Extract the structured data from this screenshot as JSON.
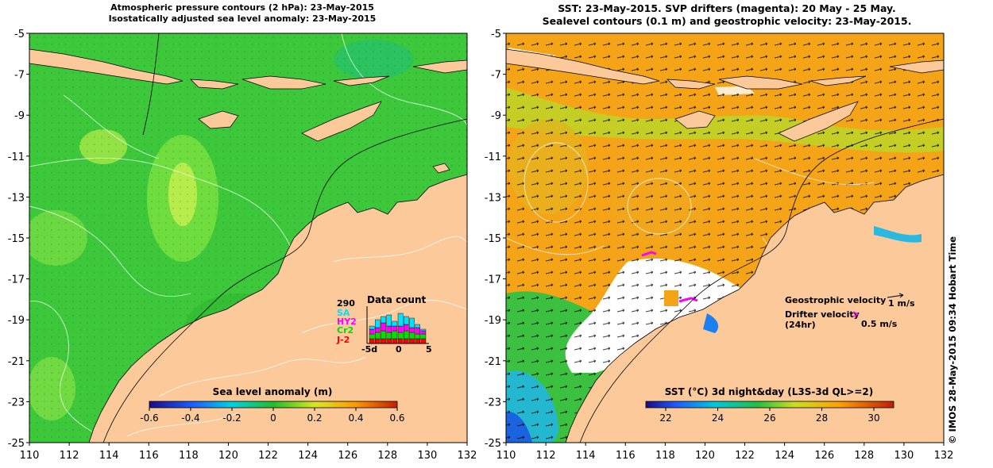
{
  "left_panel": {
    "title_line1": "Atmospheric pressure contours (2 hPa): 23-May-2015",
    "title_line2": "Isostatically adjusted sea level anomaly: 23-May-2015",
    "x_ticks": [
      "110",
      "112",
      "114",
      "116",
      "118",
      "120",
      "122",
      "124",
      "126",
      "128",
      "130",
      "132"
    ],
    "y_ticks": [
      "-5",
      "-7",
      "-9",
      "-11",
      "-13",
      "-15",
      "-17",
      "-19",
      "-21",
      "-23",
      "-25"
    ],
    "colorbar": {
      "label": "Sea level anomaly (m)",
      "ticks": [
        "-0.6",
        "-0.4",
        "-0.2",
        "0",
        "0.2",
        "0.4",
        "0.6"
      ]
    },
    "data_count": {
      "title": "Data count",
      "max_label": "290",
      "satellites": [
        "SA",
        "HY2",
        "Cr2",
        "J-2"
      ],
      "satellite_colors": [
        "#00e0ff",
        "#ff00ff",
        "#00e000",
        "#ff0000"
      ],
      "x_labels": [
        "-5d",
        "0",
        "5"
      ]
    }
  },
  "right_panel": {
    "title_line1": "SST: 23-May-2015. SVP drifters (magenta): 20 May - 25 May.",
    "title_line2": "Sealevel contours (0.1 m) and geostrophic velocity: 23-May-2015.",
    "x_ticks": [
      "110",
      "112",
      "114",
      "116",
      "118",
      "120",
      "122",
      "124",
      "126",
      "128",
      "130",
      "132"
    ],
    "y_ticks": [
      "-5",
      "-7",
      "-9",
      "-11",
      "-13",
      "-15",
      "-17",
      "-19",
      "-21",
      "-23",
      "-25"
    ],
    "colorbar": {
      "label": "SST (°C) 3d night&day (L3S-3d QL>=2)",
      "ticks": [
        "22",
        "24",
        "26",
        "28",
        "30"
      ]
    },
    "legend": {
      "geo_label": "Geostrophic velocity",
      "geo_scale": "1 m/s",
      "drifter_label": "Drifter velocity",
      "drifter_period": "(24hr)",
      "drifter_scale": "0.5 m/s"
    }
  },
  "credit": "© IMOS 28-May-2015 09:34 Hobart Time"
}
